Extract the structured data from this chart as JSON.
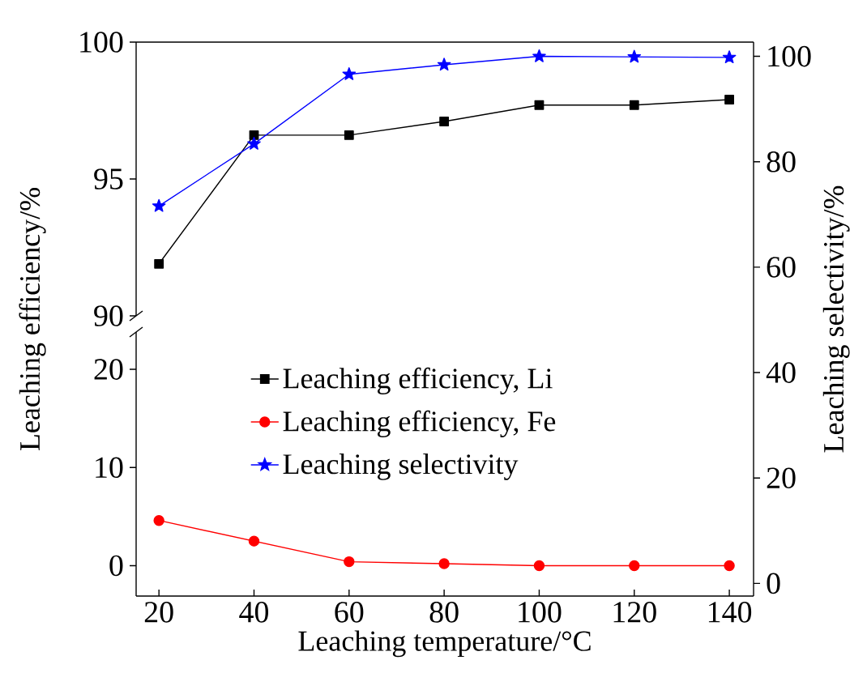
{
  "chart_data": [
    {
      "type": "line",
      "x": [
        20,
        40,
        60,
        80,
        100,
        120,
        140
      ],
      "xlim": [
        15.2,
        145.1
      ],
      "ylim": [
        90,
        100
      ],
      "yticks": [
        90,
        95,
        100
      ],
      "tick_labels": "y",
      "legend": "bottom",
      "series": [
        {
          "name": "Leaching efficiency, Li",
          "color": "#000000",
          "marker": "square",
          "values": [
            91.9,
            96.6,
            96.6,
            97.1,
            97.7,
            97.7,
            97.9
          ]
        }
      ]
    },
    {
      "type": "line",
      "x": [
        20,
        40,
        60,
        80,
        100,
        120,
        140
      ],
      "xlim": [
        15.2,
        145.1
      ],
      "xticks": [
        20,
        40,
        60,
        80,
        100,
        120,
        140
      ],
      "ylim": [
        -3.1,
        23.8
      ],
      "yticks": [
        0,
        10,
        20
      ],
      "xlabel": "Leaching temperature/°C",
      "ylabel": "Leaching efficiency/%",
      "legend": "top",
      "series": [
        {
          "name": "Leaching efficiency, Fe",
          "color": "#ff0000",
          "marker": "circle",
          "values": [
            4.6,
            2.5,
            0.4,
            0.2,
            0,
            0,
            0
          ]
        }
      ]
    },
    {
      "type": "line",
      "x": [
        20,
        40,
        60,
        80,
        100,
        120,
        140
      ],
      "xlim": [
        15.2,
        145.1
      ],
      "y2lim": [
        -2.4,
        102.7
      ],
      "y2ticks": [
        0,
        20,
        40,
        60,
        80,
        100
      ],
      "y2label": "Leaching selectivity/%",
      "legend": "bottom left",
      "tick_labels": "y",
      "series": [
        {
          "name": "Leaching selectivity",
          "color": "#0000ff",
          "marker": "star",
          "axis": "y2",
          "values": [
            71.6,
            83.4,
            96.6,
            98.4,
            100,
            99.9,
            99.8
          ]
        }
      ]
    }
  ]
}
